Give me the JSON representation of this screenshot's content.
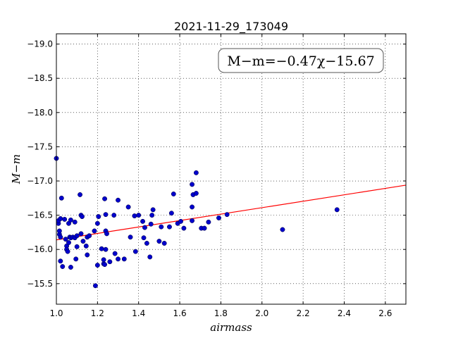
{
  "chart_data": {
    "type": "scatter",
    "title": "2021-11-29_173049",
    "xlabel": "airmass",
    "ylabel": "M−m",
    "xlim": [
      1.0,
      2.7
    ],
    "ylim": [
      -19.15,
      -15.2
    ],
    "y_inverted": true,
    "grid": true,
    "x_ticks": [
      "1.0",
      "1.2",
      "1.4",
      "1.6",
      "1.8",
      "2.0",
      "2.2",
      "2.4",
      "2.6"
    ],
    "y_ticks": [
      "−15.5",
      "−16.0",
      "−16.5",
      "−17.0",
      "−17.5",
      "−18.0",
      "−18.5",
      "−19.0"
    ],
    "fit_label": "M−m=−0.47χ−15.67",
    "fit": {
      "slope": -0.47,
      "intercept": -15.67,
      "color": "#ff0000"
    },
    "point_color": "#0000cc",
    "points": [
      [
        1.0,
        -17.33
      ],
      [
        1.01,
        -16.38
      ],
      [
        1.01,
        -16.42
      ],
      [
        1.015,
        -16.22
      ],
      [
        1.015,
        -16.27
      ],
      [
        1.02,
        -16.18
      ],
      [
        1.02,
        -16.45
      ],
      [
        1.02,
        -15.83
      ],
      [
        1.025,
        -16.75
      ],
      [
        1.03,
        -15.75
      ],
      [
        1.04,
        -16.44
      ],
      [
        1.045,
        -16.15
      ],
      [
        1.05,
        -16.05
      ],
      [
        1.05,
        -16.0
      ],
      [
        1.055,
        -15.97
      ],
      [
        1.06,
        -16.1
      ],
      [
        1.06,
        -16.38
      ],
      [
        1.065,
        -16.18
      ],
      [
        1.07,
        -16.43
      ],
      [
        1.07,
        -16.17
      ],
      [
        1.07,
        -15.74
      ],
      [
        1.08,
        -16.18
      ],
      [
        1.09,
        -16.4
      ],
      [
        1.09,
        -16.17
      ],
      [
        1.095,
        -15.86
      ],
      [
        1.1,
        -16.04
      ],
      [
        1.1,
        -16.2
      ],
      [
        1.115,
        -16.8
      ],
      [
        1.12,
        -16.23
      ],
      [
        1.12,
        -16.5
      ],
      [
        1.125,
        -16.48
      ],
      [
        1.13,
        -16.12
      ],
      [
        1.145,
        -16.05
      ],
      [
        1.15,
        -16.18
      ],
      [
        1.15,
        -15.92
      ],
      [
        1.16,
        -16.2
      ],
      [
        1.185,
        -16.27
      ],
      [
        1.19,
        -15.47
      ],
      [
        1.2,
        -15.77
      ],
      [
        1.2,
        -16.38
      ],
      [
        1.205,
        -16.48
      ],
      [
        1.22,
        -16.01
      ],
      [
        1.23,
        -15.79
      ],
      [
        1.23,
        -15.85
      ],
      [
        1.235,
        -15.78
      ],
      [
        1.235,
        -16.74
      ],
      [
        1.24,
        -16.51
      ],
      [
        1.24,
        -16.27
      ],
      [
        1.245,
        -16.23
      ],
      [
        1.24,
        -16.0
      ],
      [
        1.26,
        -15.82
      ],
      [
        1.28,
        -16.5
      ],
      [
        1.285,
        -15.94
      ],
      [
        1.3,
        -15.86
      ],
      [
        1.3,
        -16.72
      ],
      [
        1.33,
        -15.86
      ],
      [
        1.35,
        -16.62
      ],
      [
        1.36,
        -16.18
      ],
      [
        1.38,
        -16.49
      ],
      [
        1.385,
        -15.97
      ],
      [
        1.4,
        -16.5
      ],
      [
        1.42,
        -16.41
      ],
      [
        1.425,
        -16.17
      ],
      [
        1.43,
        -16.32
      ],
      [
        1.44,
        -16.09
      ],
      [
        1.455,
        -15.89
      ],
      [
        1.46,
        -16.37
      ],
      [
        1.465,
        -16.5
      ],
      [
        1.47,
        -16.58
      ],
      [
        1.5,
        -16.12
      ],
      [
        1.51,
        -16.33
      ],
      [
        1.525,
        -16.09
      ],
      [
        1.55,
        -16.33
      ],
      [
        1.56,
        -16.53
      ],
      [
        1.57,
        -16.81
      ],
      [
        1.59,
        -16.38
      ],
      [
        1.605,
        -16.41
      ],
      [
        1.62,
        -16.31
      ],
      [
        1.66,
        -16.42
      ],
      [
        1.66,
        -16.62
      ],
      [
        1.66,
        -16.95
      ],
      [
        1.665,
        -16.8
      ],
      [
        1.68,
        -16.82
      ],
      [
        1.68,
        -17.12
      ],
      [
        1.705,
        -16.31
      ],
      [
        1.72,
        -16.31
      ],
      [
        1.74,
        -16.4
      ],
      [
        1.79,
        -16.46
      ],
      [
        1.83,
        -16.51
      ],
      [
        2.1,
        -16.29
      ],
      [
        2.365,
        -16.58
      ]
    ]
  }
}
